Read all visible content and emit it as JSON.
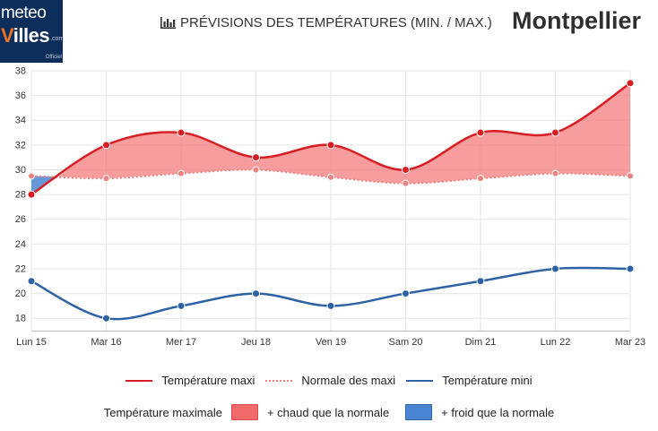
{
  "brand": {
    "meteo": "meteo",
    "villes_v": "V",
    "villes_rest": "illes",
    "dotcom": ".com",
    "officiel": "Officiel"
  },
  "header": {
    "title": "PRÉVISIONS DES TEMPÉRATURES (MIN. / MAX.)",
    "city": "Montpellier"
  },
  "colors": {
    "max": "#d81e22",
    "normal": "#f08080",
    "min": "#2d62a7",
    "warm_fill": "#f47373",
    "cold_fill": "#4a86d4",
    "grid": "#e6e6e6"
  },
  "chart_data": {
    "type": "line",
    "categories": [
      "Lun 15",
      "Mar 16",
      "Mer 17",
      "Jeu 18",
      "Ven 19",
      "Sam 20",
      "Dim 21",
      "Lun 22",
      "Mar 23"
    ],
    "series": [
      {
        "name": "Température maxi",
        "values": [
          28,
          32,
          33,
          31,
          32,
          30,
          33,
          33,
          37
        ]
      },
      {
        "name": "Normale des maxi",
        "values": [
          29.5,
          29.3,
          29.7,
          30.0,
          29.4,
          28.9,
          29.3,
          29.7,
          29.5
        ]
      },
      {
        "name": "Température mini",
        "values": [
          21,
          18,
          19,
          20,
          19,
          20,
          21,
          22,
          22
        ]
      }
    ],
    "ylim": [
      17,
      38
    ],
    "yticks": [
      18,
      20,
      22,
      24,
      26,
      28,
      30,
      32,
      34,
      36,
      38
    ],
    "grid": true,
    "legend": {
      "max_label": "Température maxi",
      "normal_label": "Normale des maxi",
      "min_label": "Température mini",
      "fill_title": "Température maximale",
      "warm_label": "+ chaud que la normale",
      "cold_label": "+ froid que la normale"
    }
  }
}
